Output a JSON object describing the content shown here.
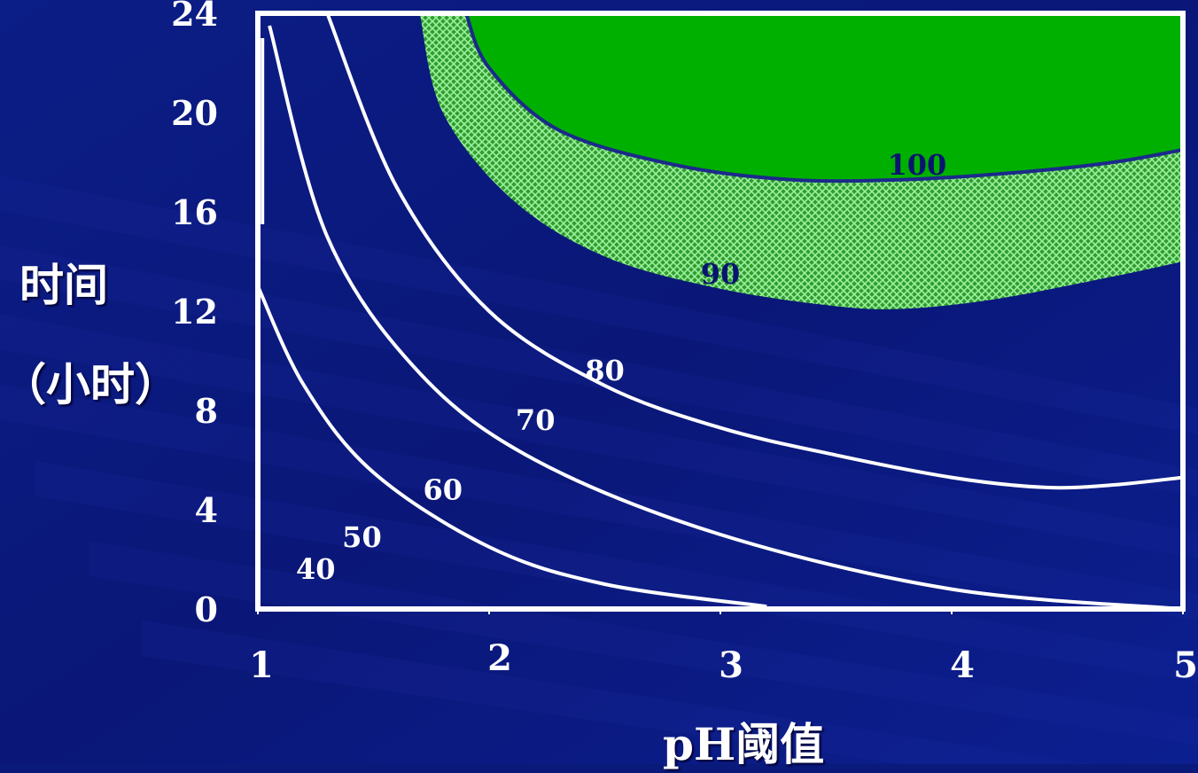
{
  "chart_data": {
    "type": "contour",
    "xlabel": "pH阈值",
    "ylabel_line1": "时间",
    "ylabel_line2": "（小时）",
    "xlim": [
      1,
      5
    ],
    "ylim": [
      0,
      24
    ],
    "x_ticks": [
      "1",
      "2",
      "3",
      "4",
      "5"
    ],
    "y_ticks": [
      "0",
      "4",
      "8",
      "12",
      "16",
      "20",
      "24"
    ],
    "contours": [
      {
        "label": "40",
        "points": [
          [
            1.02,
            23.0
          ],
          [
            1.02,
            15.5
          ]
        ]
      },
      {
        "label": "50",
        "points": [
          [
            1.0,
            13.0
          ],
          [
            1.2,
            9.0
          ],
          [
            1.5,
            5.5
          ],
          [
            2.0,
            2.5
          ],
          [
            2.5,
            1.0
          ],
          [
            3.2,
            0.1
          ]
        ]
      },
      {
        "label": "60",
        "points": [
          [
            1.05,
            23.5
          ],
          [
            1.3,
            15.0
          ],
          [
            1.7,
            9.5
          ],
          [
            2.2,
            6.0
          ],
          [
            3.0,
            3.0
          ],
          [
            4.0,
            0.8
          ],
          [
            5.0,
            0.0
          ]
        ]
      },
      {
        "label": "70",
        "points": [
          [
            1.3,
            24.0
          ],
          [
            1.6,
            17.0
          ],
          [
            2.0,
            12.0
          ],
          [
            2.5,
            9.0
          ],
          [
            3.0,
            7.3
          ],
          [
            3.5,
            6.2
          ],
          [
            4.0,
            5.3
          ],
          [
            4.4,
            4.9
          ],
          [
            4.7,
            5.0
          ],
          [
            5.0,
            5.3
          ]
        ]
      },
      {
        "label": "80",
        "points": [
          [
            1.7,
            24.0
          ],
          [
            1.8,
            20.0
          ],
          [
            2.1,
            16.5
          ],
          [
            2.5,
            14.2
          ],
          [
            3.0,
            12.9
          ],
          [
            3.5,
            12.2
          ],
          [
            3.8,
            12.1
          ],
          [
            4.2,
            12.5
          ],
          [
            4.7,
            13.4
          ],
          [
            5.0,
            14.0
          ]
        ]
      },
      {
        "label": "90",
        "points": [
          [
            1.9,
            24.0
          ],
          [
            2.0,
            21.8
          ],
          [
            2.3,
            19.3
          ],
          [
            2.8,
            17.9
          ],
          [
            3.3,
            17.3
          ],
          [
            3.8,
            17.3
          ],
          [
            4.3,
            17.6
          ],
          [
            4.7,
            18.0
          ],
          [
            5.0,
            18.5
          ]
        ]
      },
      {
        "label": "100",
        "points": []
      }
    ],
    "regions": [
      {
        "name": "90-100",
        "fill": "#6fd06f",
        "pattern": "crosshatch"
      },
      {
        "name": "100",
        "fill": "#00b000"
      }
    ],
    "contour_labels": [
      {
        "text": "40",
        "x": 1.25,
        "y": 1.6
      },
      {
        "text": "50",
        "x": 1.45,
        "y": 2.9
      },
      {
        "text": "60",
        "x": 1.8,
        "y": 4.8
      },
      {
        "text": "70",
        "x": 2.2,
        "y": 7.6
      },
      {
        "text": "80",
        "x": 2.5,
        "y": 9.6
      },
      {
        "text": "90",
        "x": 3.0,
        "y": 13.5
      },
      {
        "text": "100",
        "x": 3.85,
        "y": 17.9
      }
    ],
    "colors": {
      "background": "#0a1a7a",
      "axis": "#ffffff",
      "contour_line": "#ffffff",
      "label_white": "#ffffff",
      "label_dark": "#0a1470",
      "green_solid": "#00b000",
      "green_hatch": "#6fd06f"
    }
  }
}
